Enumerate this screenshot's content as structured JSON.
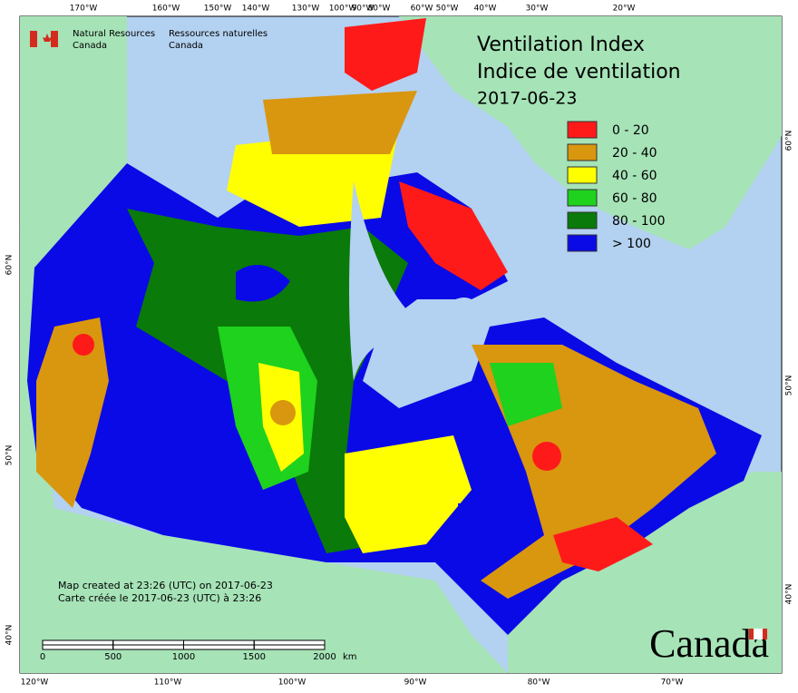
{
  "header": {
    "title": "Ventilation Index",
    "title_fr": "Indice de ventilation",
    "date": "2017-06-23"
  },
  "agency": {
    "en_1": "Natural Resources",
    "en_2": "Canada",
    "fr_1": "Ressources naturelles",
    "fr_2": "Canada"
  },
  "legend": [
    {
      "label": "0 - 20",
      "color": "#ff1a1a"
    },
    {
      "label": "20 - 40",
      "color": "#d9960f"
    },
    {
      "label": "40 - 60",
      "color": "#ffff00"
    },
    {
      "label": "60 - 80",
      "color": "#1ed21e"
    },
    {
      "label": "80 - 100",
      "color": "#0a7a0a"
    },
    {
      "label": "> 100",
      "color": "#0a0ae6"
    }
  ],
  "graticule": {
    "top": [
      "170°W",
      "160°W",
      "150°W",
      "140°W",
      "130°W",
      "100°W",
      "90°W",
      "80°W",
      "60°W",
      "50°W",
      "40°W",
      "30°W",
      "20°W"
    ],
    "bottom": [
      "120°W",
      "110°W",
      "100°W",
      "90°W",
      "80°W",
      "70°W"
    ],
    "left": [
      "60°N",
      "50°N",
      "40°N"
    ],
    "right": [
      "60°N",
      "50°N",
      "40°N"
    ]
  },
  "credits": {
    "en": "Map created at 23:26 (UTC) on 2017-06-23",
    "fr": "Carte créée le 2017-06-23 (UTC) à 23:26"
  },
  "scale_bar": {
    "ticks": [
      0,
      500,
      1000,
      1500,
      2000
    ],
    "unit": "km"
  },
  "wordmark": "Canada"
}
